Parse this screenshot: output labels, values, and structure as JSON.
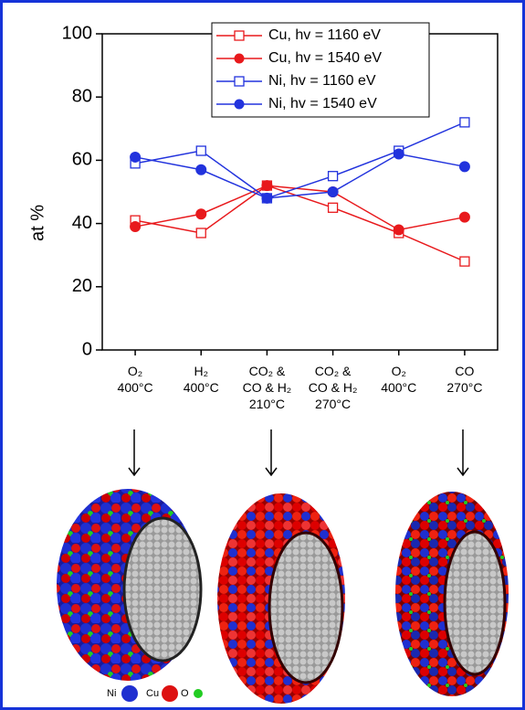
{
  "chart_data": {
    "type": "line",
    "ylabel": "at %",
    "categories": [
      "O₂\n400°C",
      "H₂\n400°C",
      "CO₂ &\nCO & H₂\n210°C",
      "CO₂ &\nCO & H₂\n270°C",
      "O₂\n400°C",
      "CO\n270°C"
    ],
    "series": [
      {
        "name": "Cu, hv = 1160 eV",
        "color": "#e8191c",
        "marker": "square-open",
        "values": [
          41,
          37,
          52,
          45,
          37,
          28
        ]
      },
      {
        "name": "Cu, hv = 1540 eV",
        "color": "#e8191c",
        "marker": "circle",
        "values": [
          39,
          43,
          52,
          50,
          38,
          42
        ]
      },
      {
        "name": "Ni, hv = 1160 eV",
        "color": "#2233dd",
        "marker": "square-open",
        "values": [
          59,
          63,
          48,
          55,
          63,
          72
        ]
      },
      {
        "name": "Ni, hv = 1540 eV",
        "color": "#2233dd",
        "marker": "circle",
        "values": [
          61,
          57,
          48,
          50,
          62,
          58
        ]
      }
    ],
    "ylim": [
      0,
      100
    ],
    "yticks": [
      0,
      20,
      40,
      60,
      80,
      100
    ],
    "grid": false,
    "legend": "upper right"
  },
  "particle_legend": [
    "Ni",
    "Cu",
    "O"
  ]
}
